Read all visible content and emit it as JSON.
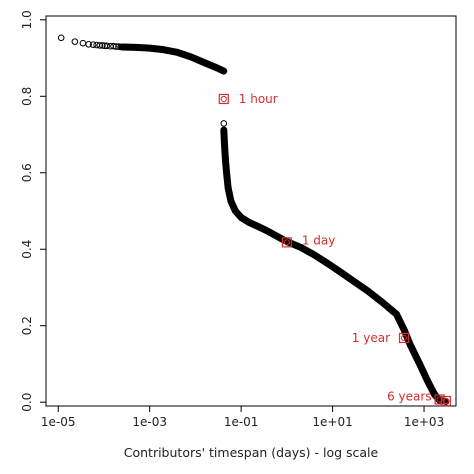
{
  "chart_data": {
    "type": "scatter",
    "title": "",
    "xlabel": "Contributors' timespan (days) - log scale",
    "ylabel": "",
    "x_scale": "log",
    "xlim": [
      5.4e-06,
      5000
    ],
    "ylim": [
      -0.01,
      1.01
    ],
    "x_ticks": [
      1e-05,
      0.001,
      0.1,
      10,
      1000
    ],
    "x_tick_labels": [
      "1e-05",
      "1e-03",
      "1e-01",
      "1e+01",
      "1e+03"
    ],
    "y_ticks": [
      0.0,
      0.2,
      0.4,
      0.6,
      0.8,
      1.0
    ],
    "y_tick_labels": [
      "0.0",
      "0.2",
      "0.4",
      "0.6",
      "0.8",
      "1.0"
    ],
    "grid": false,
    "marker": "open-circle",
    "marker_color": "#000000",
    "highlight_color": "#d32f2f",
    "sparse_points": [
      {
        "x": 1.16e-05,
        "y": 0.953
      },
      {
        "x": 2.31e-05,
        "y": 0.943
      },
      {
        "x": 3.47e-05,
        "y": 0.939
      },
      {
        "x": 4.63e-05,
        "y": 0.936
      },
      {
        "x": 5.79e-05,
        "y": 0.935
      },
      {
        "x": 6.94e-05,
        "y": 0.934
      },
      {
        "x": 8.1e-05,
        "y": 0.933
      },
      {
        "x": 9.26e-05,
        "y": 0.933
      },
      {
        "x": 0.000104,
        "y": 0.932
      },
      {
        "x": 0.000116,
        "y": 0.932
      },
      {
        "x": 0.000139,
        "y": 0.931
      },
      {
        "x": 0.000162,
        "y": 0.931
      },
      {
        "x": 0.000185,
        "y": 0.93
      },
      {
        "x": 0.000208,
        "y": 0.93
      },
      {
        "x": 0.000231,
        "y": 0.929
      },
      {
        "x": 0.0417,
        "y": 0.729
      }
    ],
    "curve_segments": [
      [
        {
          "x": 0.00025,
          "y": 0.929
        },
        {
          "x": 0.0005,
          "y": 0.928
        },
        {
          "x": 0.001,
          "y": 0.926
        },
        {
          "x": 0.002,
          "y": 0.922
        },
        {
          "x": 0.004,
          "y": 0.915
        },
        {
          "x": 0.008,
          "y": 0.903
        },
        {
          "x": 0.015,
          "y": 0.889
        },
        {
          "x": 0.03,
          "y": 0.874
        },
        {
          "x": 0.0417,
          "y": 0.866
        }
      ],
      [
        {
          "x": 0.0418,
          "y": 0.712
        },
        {
          "x": 0.043,
          "y": 0.68
        },
        {
          "x": 0.045,
          "y": 0.64
        },
        {
          "x": 0.048,
          "y": 0.6
        },
        {
          "x": 0.052,
          "y": 0.56
        },
        {
          "x": 0.06,
          "y": 0.525
        },
        {
          "x": 0.075,
          "y": 0.5
        },
        {
          "x": 0.1,
          "y": 0.483
        },
        {
          "x": 0.15,
          "y": 0.47
        },
        {
          "x": 0.25,
          "y": 0.458
        },
        {
          "x": 0.4,
          "y": 0.446
        },
        {
          "x": 0.7,
          "y": 0.43
        },
        {
          "x": 1.0,
          "y": 0.42
        },
        {
          "x": 2.0,
          "y": 0.405
        },
        {
          "x": 4.0,
          "y": 0.385
        },
        {
          "x": 8.0,
          "y": 0.362
        },
        {
          "x": 15,
          "y": 0.34
        },
        {
          "x": 30,
          "y": 0.315
        },
        {
          "x": 60,
          "y": 0.29
        },
        {
          "x": 120,
          "y": 0.262
        },
        {
          "x": 250,
          "y": 0.23
        },
        {
          "x": 365,
          "y": 0.19
        },
        {
          "x": 500,
          "y": 0.15
        },
        {
          "x": 800,
          "y": 0.1
        },
        {
          "x": 1200,
          "y": 0.055
        },
        {
          "x": 1700,
          "y": 0.02
        },
        {
          "x": 2190,
          "y": 0.005
        },
        {
          "x": 3000,
          "y": 0.002
        }
      ]
    ],
    "highlights": [
      {
        "x": 0.0417,
        "y": 0.793,
        "label": "1 hour"
      },
      {
        "x": 1.0,
        "y": 0.418,
        "label": "1 day"
      },
      {
        "x": 365,
        "y": 0.168,
        "label": "1 year"
      },
      {
        "x": 2190,
        "y": 0.007,
        "label": "6 years"
      },
      {
        "x": 3000,
        "y": 0.003,
        "label": ""
      }
    ]
  }
}
